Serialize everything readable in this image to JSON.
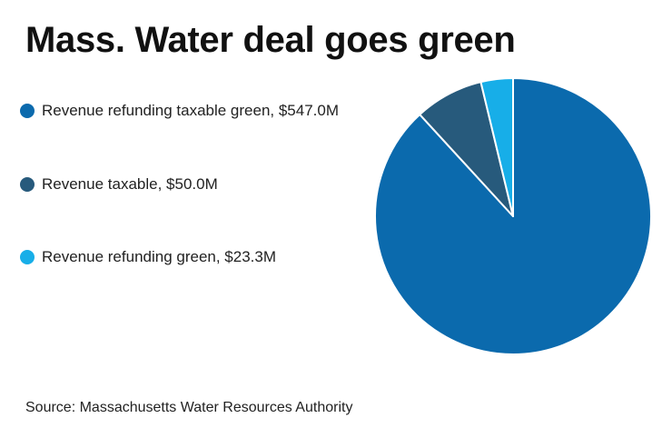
{
  "chart_data": {
    "type": "pie",
    "title": "Mass. Water deal goes green",
    "categories": [
      "Revenue refunding taxable green",
      "Revenue taxable",
      "Revenue refunding green"
    ],
    "values": [
      547.0,
      50.0,
      23.3
    ],
    "unit": "$M",
    "legend_labels": [
      "Revenue refunding taxable green, $547.0M",
      "Revenue taxable, $50.0M",
      "Revenue refunding green, $23.3M"
    ],
    "colors": [
      "#0b6aad",
      "#275a7c",
      "#17aee8"
    ],
    "legend_position": "left",
    "source": "Source: Massachusetts Water Resources Authority"
  }
}
